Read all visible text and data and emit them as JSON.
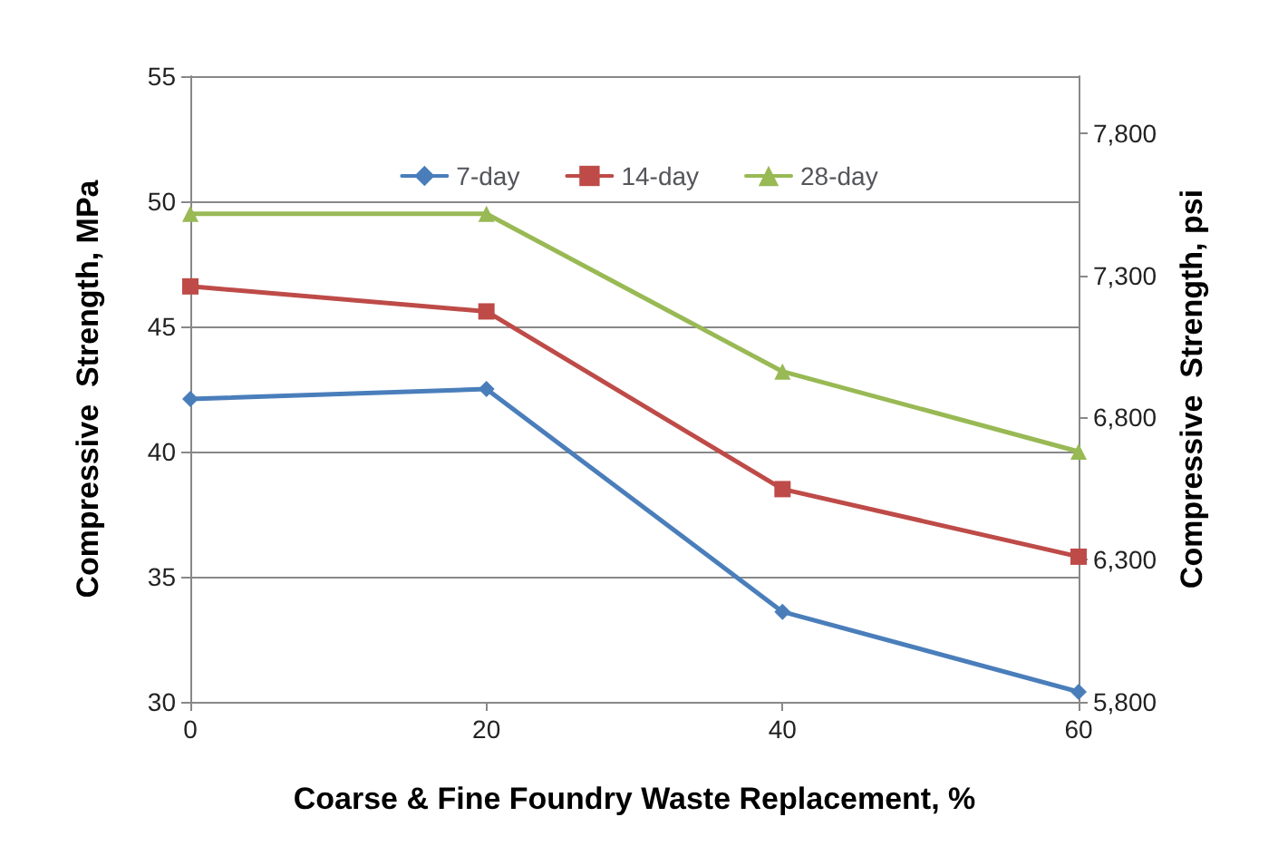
{
  "chart_data": {
    "type": "line",
    "xlabel": "Coarse & Fine Foundry Waste Replacement, %",
    "ylabel": "Compressive  Strength, MPa",
    "y2label": "Compressive  Strength, psi",
    "x": [
      0,
      20,
      40,
      60
    ],
    "xlim": [
      0,
      60
    ],
    "xticks": [
      0,
      20,
      40,
      60
    ],
    "ylim": [
      30,
      55
    ],
    "yticks": [
      30,
      35,
      40,
      45,
      50,
      55
    ],
    "y2lim": [
      5800,
      8000
    ],
    "y2ticks": [
      {
        "value": 5800,
        "label": "5,800"
      },
      {
        "value": 6300,
        "label": "6,300"
      },
      {
        "value": 6800,
        "label": "6,800"
      },
      {
        "value": 7300,
        "label": "7,300"
      },
      {
        "value": 7800,
        "label": "7,800"
      }
    ],
    "grid": "y",
    "legend": "top",
    "line_style": "solid",
    "series": [
      {
        "name": "7-day",
        "color": "#4a7ebb",
        "marker": "diamond",
        "values": [
          42.1,
          42.5,
          33.6,
          30.4
        ]
      },
      {
        "name": "14-day",
        "color": "#be4b48",
        "marker": "square",
        "values": [
          46.6,
          45.6,
          38.5,
          35.8
        ]
      },
      {
        "name": "28-day",
        "color": "#98b954",
        "marker": "triangle",
        "values": [
          49.5,
          49.5,
          43.2,
          40.0
        ]
      }
    ]
  }
}
